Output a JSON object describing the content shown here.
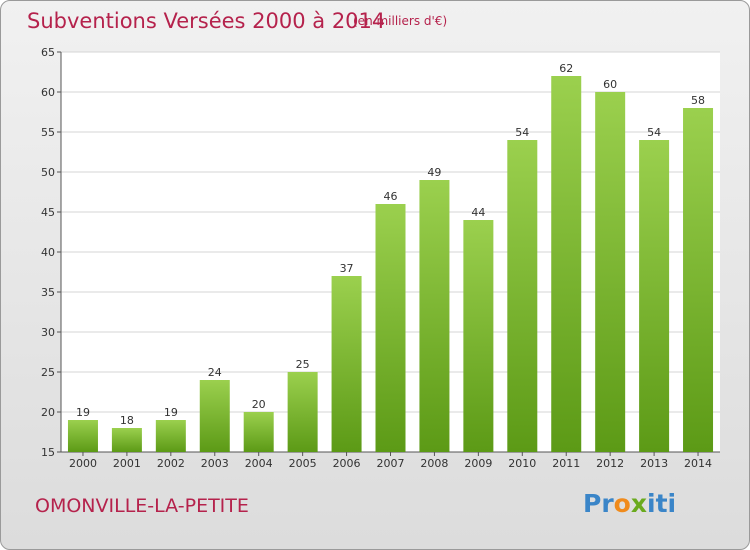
{
  "header": {
    "title": "Subventions Versées 2000 à 2014",
    "subtitle": "(en milliers d'€)"
  },
  "footer": {
    "commune": "OMONVILLE-LA-PETITE",
    "logo_text": "Proxiti"
  },
  "colors": {
    "title": "#b5224c",
    "bar_top": "#9bd04e",
    "bar_bottom": "#5c9a16",
    "logo_letters": [
      "#3a85c8",
      "#3a85c8",
      "#f08b1c",
      "#6aaa1e",
      "#3a85c8",
      "#3a85c8",
      "#3a85c8"
    ]
  },
  "chart_data": {
    "type": "bar",
    "categories": [
      "2000",
      "2001",
      "2002",
      "2003",
      "2004",
      "2005",
      "2006",
      "2007",
      "2008",
      "2009",
      "2010",
      "2011",
      "2012",
      "2013",
      "2014"
    ],
    "values": [
      19,
      18,
      19,
      24,
      20,
      25,
      37,
      46,
      49,
      44,
      54,
      62,
      60,
      54,
      58
    ],
    "title": "Subventions Versées 2000 à 2014",
    "subtitle": "(en milliers d'€)",
    "xlabel": "",
    "ylabel": "",
    "ylim": [
      15,
      65
    ],
    "yticks": [
      15,
      20,
      25,
      30,
      35,
      40,
      45,
      50,
      55,
      60,
      65
    ],
    "grid": true,
    "data_labels": true
  }
}
